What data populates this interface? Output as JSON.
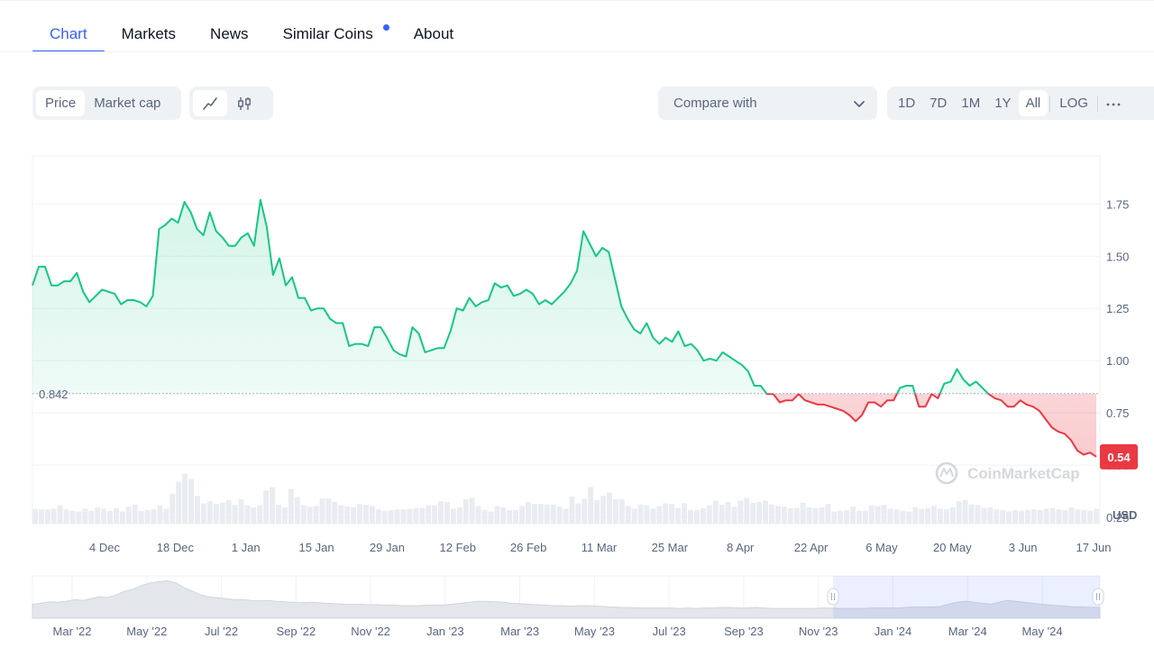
{
  "tabs": [
    {
      "label": "Chart",
      "active": true
    },
    {
      "label": "Markets"
    },
    {
      "label": "News"
    },
    {
      "label": "Similar Coins",
      "dot": true
    },
    {
      "label": "About"
    }
  ],
  "toolbar": {
    "price_label": "Price",
    "marketcap_label": "Market cap",
    "line_icon": "line-chart-icon",
    "candle_icon": "candlestick-icon",
    "compare_label": "Compare with",
    "compare_icon": "chevron-down-icon",
    "ranges": [
      "1D",
      "7D",
      "1M",
      "1Y",
      "All"
    ],
    "active_range": "All",
    "log_label": "LOG",
    "more_icon": "more-horizontal-icon"
  },
  "chart_data": {
    "type": "area",
    "x_ticks": [
      "4 Dec",
      "18 Dec",
      "1 Jan",
      "15 Jan",
      "29 Jan",
      "12 Feb",
      "26 Feb",
      "11 Mar",
      "25 Mar",
      "8 Apr",
      "22 Apr",
      "6 May",
      "20 May",
      "3 Jun",
      "17 Jun"
    ],
    "y_ticks": [
      0.25,
      0.5,
      0.75,
      1.0,
      1.25,
      1.5,
      1.75
    ],
    "ylim": [
      0.22,
      1.98
    ],
    "y_unit": "USD",
    "reference_value": "0.842",
    "current_value": "0.54",
    "watermark": "CoinMarketCap",
    "up_color": "#16c784",
    "down_color": "#ea3943",
    "series": [
      {
        "values": [
          1.36,
          1.45,
          1.45,
          1.36,
          1.36,
          1.38,
          1.38,
          1.42,
          1.33,
          1.28,
          1.31,
          1.34,
          1.33,
          1.32,
          1.27,
          1.29,
          1.29,
          1.28,
          1.26,
          1.31,
          1.63,
          1.65,
          1.68,
          1.66,
          1.76,
          1.71,
          1.63,
          1.6,
          1.71,
          1.62,
          1.59,
          1.55,
          1.55,
          1.59,
          1.61,
          1.55,
          1.77,
          1.64,
          1.41,
          1.49,
          1.36,
          1.4,
          1.3,
          1.3,
          1.24,
          1.25,
          1.25,
          1.2,
          1.18,
          1.18,
          1.07,
          1.08,
          1.08,
          1.07,
          1.16,
          1.16,
          1.11,
          1.05,
          1.03,
          1.02,
          1.16,
          1.13,
          1.04,
          1.05,
          1.06,
          1.06,
          1.14,
          1.25,
          1.24,
          1.3,
          1.26,
          1.28,
          1.29,
          1.37,
          1.35,
          1.36,
          1.31,
          1.32,
          1.34,
          1.32,
          1.27,
          1.29,
          1.27,
          1.3,
          1.33,
          1.37,
          1.43,
          1.62,
          1.56,
          1.5,
          1.54,
          1.52,
          1.39,
          1.26,
          1.2,
          1.15,
          1.13,
          1.18,
          1.11,
          1.08,
          1.11,
          1.09,
          1.14,
          1.07,
          1.08,
          1.05,
          1.0,
          1.01,
          1.0,
          1.04,
          1.02,
          1.0,
          0.98,
          0.95,
          0.88,
          0.88,
          0.84,
          0.84,
          0.8,
          0.81,
          0.81,
          0.84,
          0.81,
          0.8,
          0.79,
          0.79,
          0.78,
          0.77,
          0.76,
          0.74,
          0.71,
          0.74,
          0.8,
          0.8,
          0.78,
          0.81,
          0.81,
          0.87,
          0.88,
          0.88,
          0.78,
          0.78,
          0.84,
          0.82,
          0.89,
          0.9,
          0.96,
          0.91,
          0.88,
          0.9,
          0.87,
          0.84,
          0.82,
          0.81,
          0.78,
          0.78,
          0.81,
          0.79,
          0.78,
          0.76,
          0.72,
          0.68,
          0.66,
          0.65,
          0.62,
          0.57,
          0.55,
          0.56,
          0.54
        ]
      }
    ],
    "volume": [
      0.22,
      0.21,
      0.21,
      0.22,
      0.27,
      0.21,
      0.19,
      0.18,
      0.22,
      0.19,
      0.24,
      0.22,
      0.19,
      0.23,
      0.18,
      0.25,
      0.28,
      0.19,
      0.2,
      0.21,
      0.27,
      0.22,
      0.44,
      0.62,
      0.74,
      0.66,
      0.41,
      0.3,
      0.33,
      0.29,
      0.31,
      0.35,
      0.28,
      0.36,
      0.27,
      0.24,
      0.27,
      0.49,
      0.54,
      0.28,
      0.24,
      0.51,
      0.39,
      0.27,
      0.25,
      0.26,
      0.37,
      0.37,
      0.32,
      0.27,
      0.25,
      0.24,
      0.29,
      0.28,
      0.26,
      0.21,
      0.19,
      0.2,
      0.21,
      0.21,
      0.22,
      0.23,
      0.23,
      0.27,
      0.27,
      0.33,
      0.32,
      0.22,
      0.24,
      0.36,
      0.38,
      0.26,
      0.2,
      0.18,
      0.26,
      0.24,
      0.2,
      0.2,
      0.26,
      0.32,
      0.29,
      0.29,
      0.28,
      0.28,
      0.25,
      0.22,
      0.4,
      0.3,
      0.37,
      0.54,
      0.35,
      0.41,
      0.46,
      0.36,
      0.36,
      0.26,
      0.22,
      0.28,
      0.27,
      0.22,
      0.26,
      0.3,
      0.29,
      0.23,
      0.3,
      0.2,
      0.2,
      0.23,
      0.27,
      0.34,
      0.28,
      0.32,
      0.25,
      0.34,
      0.38,
      0.31,
      0.32,
      0.34,
      0.28,
      0.26,
      0.25,
      0.23,
      0.23,
      0.31,
      0.24,
      0.23,
      0.24,
      0.29,
      0.18,
      0.19,
      0.2,
      0.25,
      0.19,
      0.19,
      0.27,
      0.26,
      0.28,
      0.22,
      0.21,
      0.19,
      0.18,
      0.24,
      0.22,
      0.23,
      0.26,
      0.22,
      0.21,
      0.24,
      0.33,
      0.35,
      0.28,
      0.27,
      0.23,
      0.24,
      0.21,
      0.2,
      0.18,
      0.2,
      0.19,
      0.2,
      0.21,
      0.2,
      0.22,
      0.23,
      0.21,
      0.2,
      0.24,
      0.21,
      0.2,
      0.19,
      0.22
    ]
  },
  "navigator": {
    "labels": [
      "Mar '22",
      "May '22",
      "Jul '22",
      "Sep '22",
      "Nov '22",
      "Jan '23",
      "Mar '23",
      "May '23",
      "Jul '23",
      "Sep '23",
      "Nov '23",
      "Jan '24",
      "Mar '24",
      "May '24"
    ],
    "selection_start": 0.75,
    "selection_end": 1.0,
    "values": [
      0.3,
      0.32,
      0.35,
      0.34,
      0.36,
      0.4,
      0.38,
      0.42,
      0.46,
      0.44,
      0.5,
      0.58,
      0.62,
      0.7,
      0.75,
      0.78,
      0.8,
      0.76,
      0.66,
      0.58,
      0.5,
      0.46,
      0.44,
      0.42,
      0.4,
      0.4,
      0.38,
      0.37,
      0.38,
      0.36,
      0.35,
      0.34,
      0.33,
      0.34,
      0.33,
      0.32,
      0.31,
      0.3,
      0.3,
      0.3,
      0.29,
      0.29,
      0.28,
      0.28,
      0.27,
      0.27,
      0.27,
      0.28,
      0.28,
      0.28,
      0.3,
      0.32,
      0.34,
      0.36,
      0.36,
      0.35,
      0.34,
      0.32,
      0.31,
      0.3,
      0.29,
      0.28,
      0.27,
      0.27,
      0.26,
      0.27,
      0.27,
      0.26,
      0.25,
      0.24,
      0.23,
      0.23,
      0.22,
      0.22,
      0.22,
      0.22,
      0.22,
      0.21,
      0.22,
      0.21,
      0.22,
      0.22,
      0.23,
      0.23,
      0.22,
      0.22,
      0.23,
      0.22,
      0.21,
      0.21,
      0.21,
      0.21,
      0.21,
      0.21,
      0.22,
      0.22,
      0.21,
      0.21,
      0.21,
      0.21,
      0.22,
      0.22,
      0.22,
      0.22,
      0.23,
      0.24,
      0.24,
      0.24,
      0.25,
      0.3,
      0.34,
      0.36,
      0.34,
      0.32,
      0.3,
      0.34,
      0.38,
      0.36,
      0.34,
      0.32,
      0.3,
      0.28,
      0.27,
      0.26,
      0.24,
      0.24,
      0.23,
      0.23
    ]
  }
}
